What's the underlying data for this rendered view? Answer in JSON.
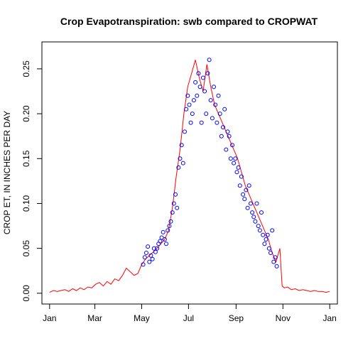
{
  "chart_data": {
    "type": "line",
    "title": "Crop Evapotranspiration: swb compared to CROPWAT",
    "xlabel": "",
    "ylabel": "CROP ET, IN INCHES PER DAY",
    "x_ticks": [
      "Jan",
      "Mar",
      "May",
      "Jul",
      "Sep",
      "Nov",
      "Jan"
    ],
    "x_tick_days": [
      0,
      59,
      120,
      181,
      243,
      304,
      365
    ],
    "xlim": [
      -10,
      375
    ],
    "y_ticks": [
      "0.00",
      "0.05",
      "0.10",
      "0.15",
      "0.20",
      "0.25"
    ],
    "y_tick_values": [
      0,
      0.05,
      0.1,
      0.15,
      0.2,
      0.25
    ],
    "ylim": [
      -0.012,
      0.28
    ],
    "grid": false,
    "colors": {
      "line": "#ff0000",
      "points": "#0000ff",
      "axes": "#000000"
    },
    "series": [
      {
        "style": "line",
        "x_days": [
          0,
          5,
          10,
          15,
          20,
          25,
          30,
          35,
          40,
          45,
          50,
          55,
          60,
          65,
          70,
          75,
          80,
          85,
          90,
          95,
          100,
          105,
          110,
          115,
          120,
          125,
          130,
          135,
          140,
          145,
          150,
          155,
          160,
          165,
          170,
          175,
          180,
          185,
          190,
          195,
          200,
          205,
          210,
          215,
          220,
          225,
          230,
          235,
          240,
          245,
          250,
          255,
          260,
          265,
          270,
          275,
          280,
          285,
          290,
          295,
          300,
          303,
          306,
          310,
          315,
          320,
          325,
          330,
          335,
          340,
          345,
          350,
          355,
          360,
          365
        ],
        "values": [
          0.001,
          0.003,
          0.002,
          0.003,
          0.004,
          0.002,
          0.005,
          0.003,
          0.006,
          0.004,
          0.007,
          0.006,
          0.01,
          0.012,
          0.008,
          0.013,
          0.01,
          0.016,
          0.014,
          0.02,
          0.028,
          0.024,
          0.02,
          0.022,
          0.032,
          0.038,
          0.042,
          0.046,
          0.05,
          0.055,
          0.06,
          0.07,
          0.095,
          0.13,
          0.16,
          0.2,
          0.23,
          0.245,
          0.26,
          0.24,
          0.225,
          0.255,
          0.23,
          0.21,
          0.2,
          0.19,
          0.18,
          0.17,
          0.16,
          0.15,
          0.135,
          0.12,
          0.11,
          0.1,
          0.09,
          0.08,
          0.07,
          0.06,
          0.045,
          0.035,
          0.05,
          0.008,
          0.006,
          0.007,
          0.004,
          0.005,
          0.003,
          0.004,
          0.003,
          0.002,
          0.003,
          0.002,
          0.002,
          0.001,
          0.002
        ]
      },
      {
        "style": "points",
        "x_days": [
          122,
          124,
          126,
          128,
          130,
          132,
          134,
          136,
          138,
          140,
          142,
          144,
          146,
          148,
          150,
          152,
          154,
          156,
          158,
          160,
          162,
          164,
          166,
          168,
          170,
          172,
          174,
          176,
          178,
          180,
          182,
          184,
          186,
          188,
          190,
          192,
          194,
          196,
          198,
          200,
          202,
          204,
          206,
          208,
          210,
          212,
          214,
          216,
          218,
          220,
          222,
          224,
          226,
          228,
          230,
          232,
          234,
          236,
          238,
          240,
          242,
          244,
          246,
          248,
          250,
          252,
          254,
          256,
          258,
          260,
          262,
          264,
          266,
          268,
          270,
          272,
          274,
          276,
          278,
          280,
          282,
          284,
          286,
          288,
          290,
          292,
          294,
          296
        ],
        "values": [
          0.032,
          0.04,
          0.045,
          0.052,
          0.035,
          0.042,
          0.038,
          0.05,
          0.046,
          0.05,
          0.055,
          0.058,
          0.062,
          0.068,
          0.06,
          0.055,
          0.07,
          0.075,
          0.08,
          0.09,
          0.1,
          0.11,
          0.095,
          0.14,
          0.15,
          0.165,
          0.145,
          0.18,
          0.205,
          0.22,
          0.21,
          0.19,
          0.2,
          0.215,
          0.235,
          0.22,
          0.245,
          0.23,
          0.19,
          0.24,
          0.225,
          0.2,
          0.245,
          0.26,
          0.215,
          0.195,
          0.23,
          0.21,
          0.19,
          0.22,
          0.2,
          0.175,
          0.185,
          0.205,
          0.16,
          0.18,
          0.175,
          0.15,
          0.165,
          0.145,
          0.15,
          0.135,
          0.14,
          0.12,
          0.13,
          0.11,
          0.105,
          0.115,
          0.095,
          0.12,
          0.1,
          0.09,
          0.085,
          0.08,
          0.1,
          0.075,
          0.07,
          0.09,
          0.065,
          0.055,
          0.06,
          0.065,
          0.05,
          0.045,
          0.07,
          0.035,
          0.04,
          0.03
        ]
      }
    ]
  }
}
